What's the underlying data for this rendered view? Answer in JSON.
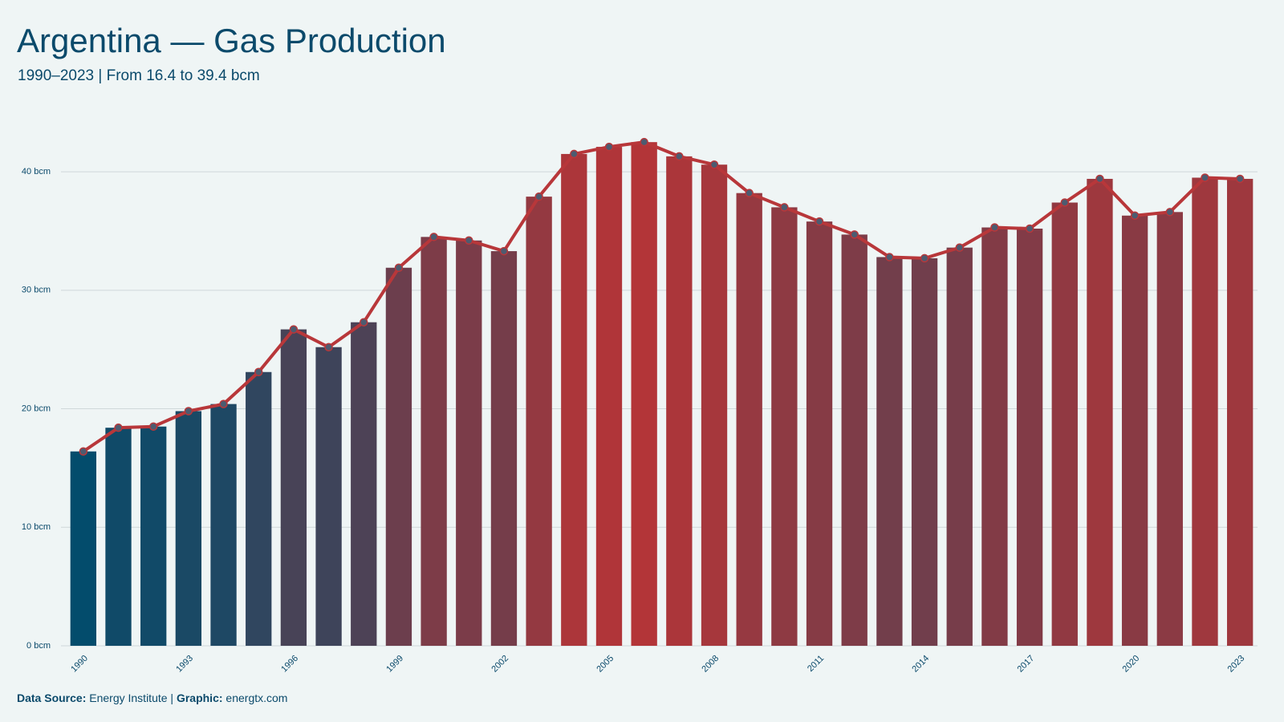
{
  "chart_data": {
    "type": "bar-line",
    "title": "Argentina — Gas Production",
    "subtitle": "1990–2023 | From 16.4 to 39.4 bcm",
    "source_label": "Data Source:",
    "source": "Energy Institute |",
    "graphic_label": "Graphic:",
    "graphic": "energtx.com",
    "categories": [
      "1990",
      null,
      null,
      "1993",
      null,
      null,
      "1996",
      null,
      null,
      "1999",
      null,
      null,
      "2002",
      null,
      null,
      "2005",
      null,
      null,
      "2008",
      null,
      null,
      "2011",
      null,
      null,
      "2014",
      null,
      null,
      "2017",
      null,
      null,
      "2020",
      null,
      null,
      "2023"
    ],
    "values": [
      16.4,
      18.4,
      18.5,
      19.8,
      20.4,
      23.1,
      26.7,
      25.2,
      27.3,
      31.9,
      34.5,
      34.2,
      33.3,
      37.9,
      41.5,
      42.1,
      42.5,
      41.3,
      40.6,
      38.2,
      37.0,
      35.8,
      34.7,
      32.8,
      32.7,
      33.6,
      35.3,
      35.2,
      37.4,
      39.4,
      36.3,
      36.6,
      39.5,
      39.4
    ],
    "color_scale": [
      "#034c6c",
      "#b33538"
    ],
    "line_color": "#b8373a",
    "marker_color": "#4d5b70",
    "ylim": [
      0,
      44
    ],
    "yticks": [
      {
        "value": 0,
        "label": "0 bcm"
      },
      {
        "value": 10,
        "label": "10 bcm"
      },
      {
        "value": 20,
        "label": "20 bcm"
      },
      {
        "value": 30,
        "label": "30 bcm"
      },
      {
        "value": 40,
        "label": "40 bcm"
      }
    ],
    "grid": true
  }
}
